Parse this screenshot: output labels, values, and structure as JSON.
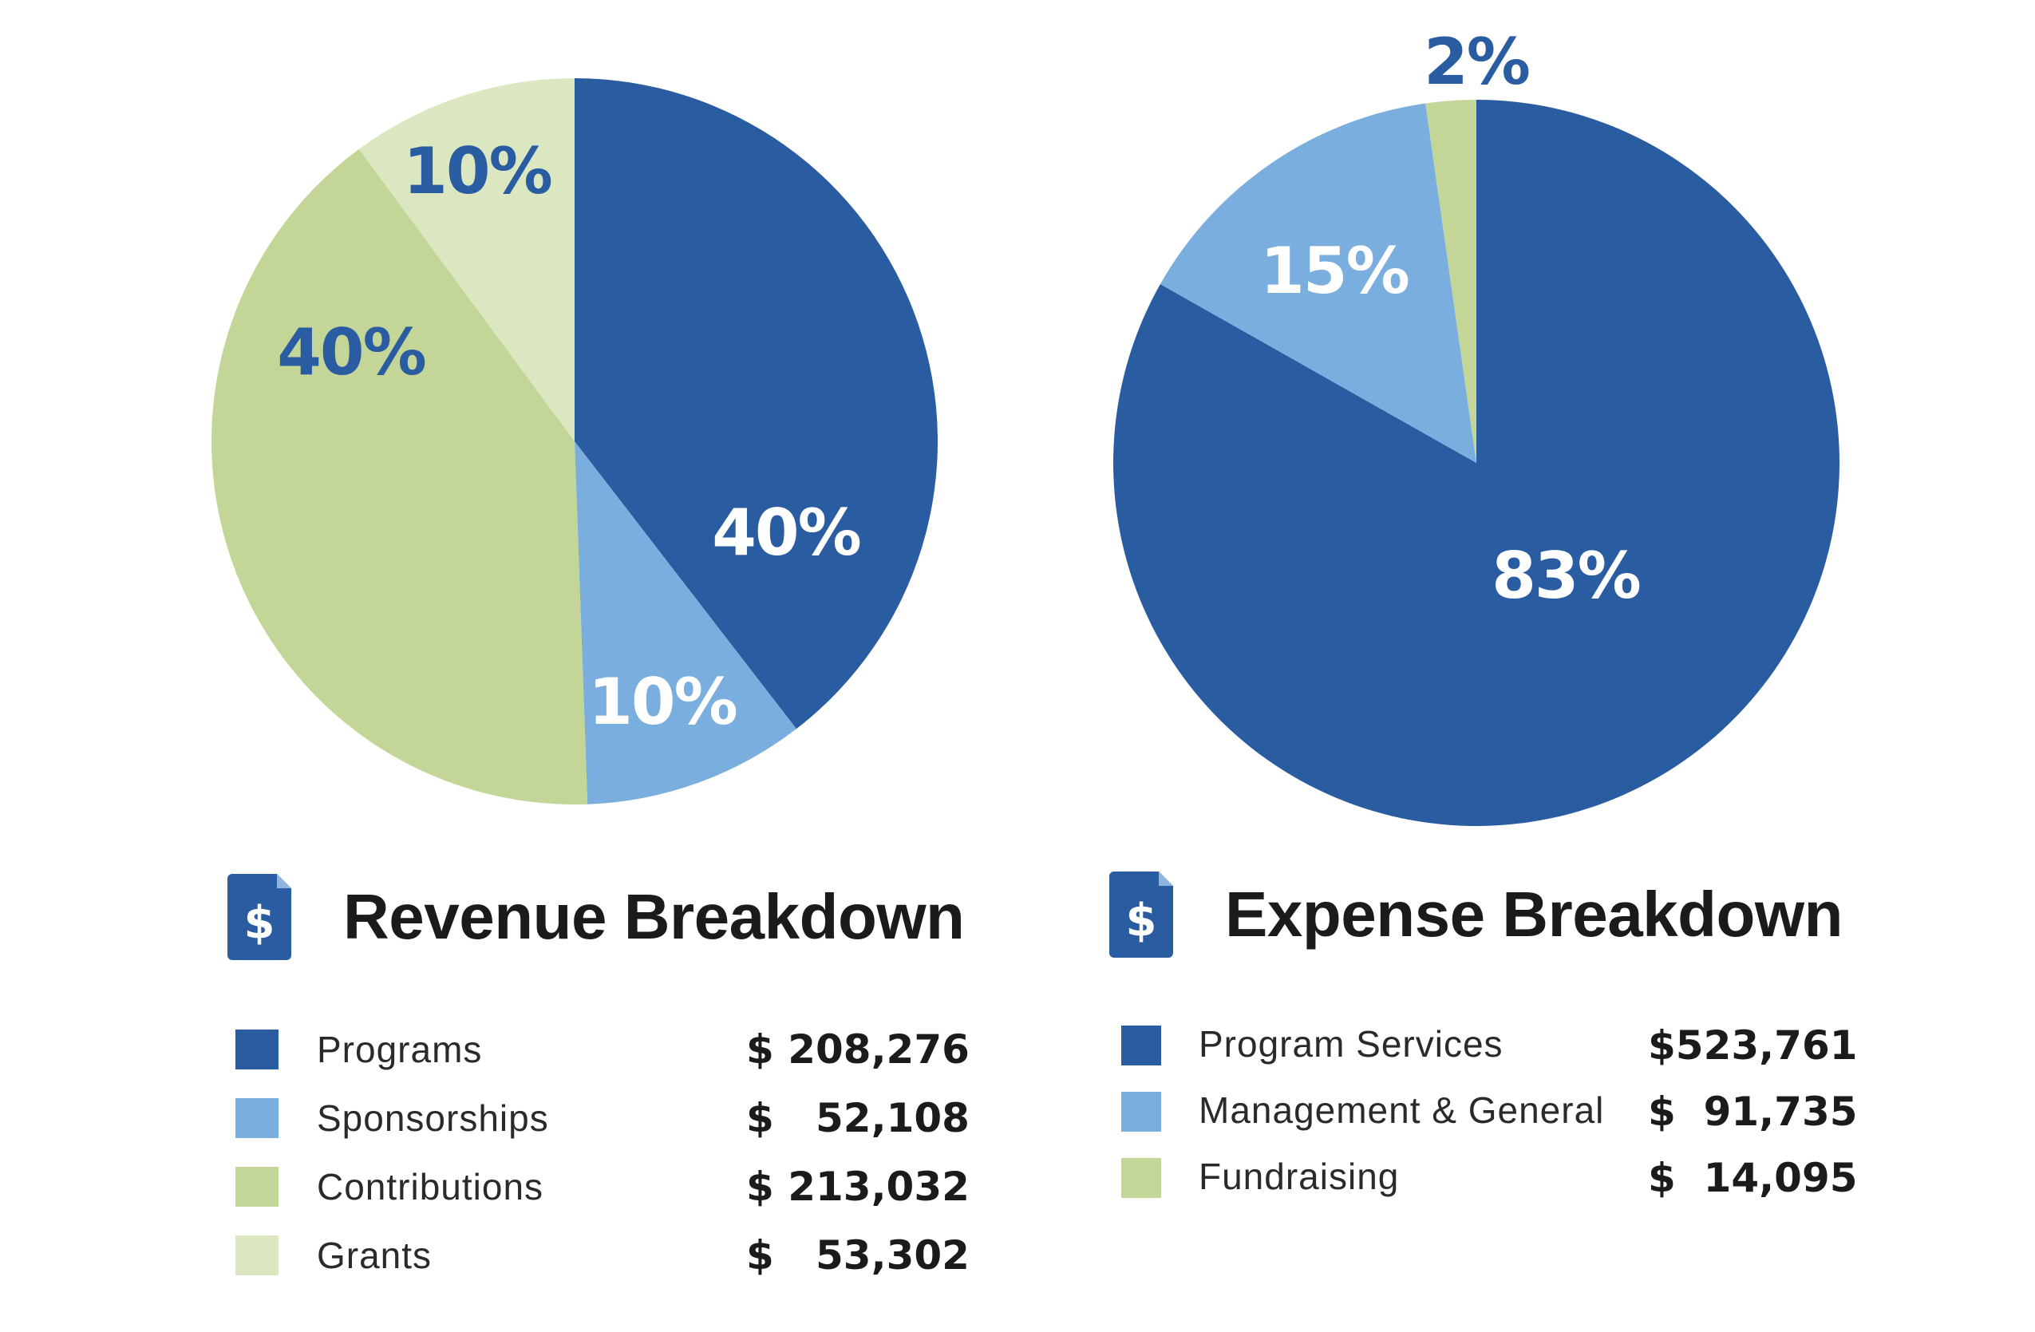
{
  "chart_data": [
    {
      "type": "pie",
      "title": "Revenue Breakdown",
      "categories": [
        "Programs",
        "Sponsorships",
        "Contributions",
        "Grants"
      ],
      "values": [
        208276,
        52108,
        213032,
        53302
      ],
      "amounts": [
        "$ 208,276",
        "$   52,108",
        "$ 213,032",
        "$   53,302"
      ],
      "percent_labels": [
        "40%",
        "10%",
        "40%",
        "10%"
      ],
      "colors": [
        "#2a5ca2",
        "#7aaedf",
        "#c4d697",
        "#dbe7c0"
      ],
      "label_colors": [
        "#ffffff",
        "#ffffff",
        "#2a5ca2",
        "#2a5ca2"
      ]
    },
    {
      "type": "pie",
      "title": "Expense Breakdown",
      "categories": [
        "Program Services",
        "Management & General",
        "Fundraising"
      ],
      "values": [
        523761,
        91735,
        14095
      ],
      "amounts": [
        "$523,761",
        "$  91,735",
        "$  14,095"
      ],
      "percent_labels": [
        "83%",
        "15%",
        "2%"
      ],
      "colors": [
        "#2a5ca2",
        "#7aaedf",
        "#c4d697"
      ],
      "label_colors": [
        "#ffffff",
        "#ffffff",
        "#2a5ca2"
      ]
    }
  ],
  "icons": {
    "heading_icon": "dollar-document-icon",
    "icon_color": "#2a5ca2"
  }
}
